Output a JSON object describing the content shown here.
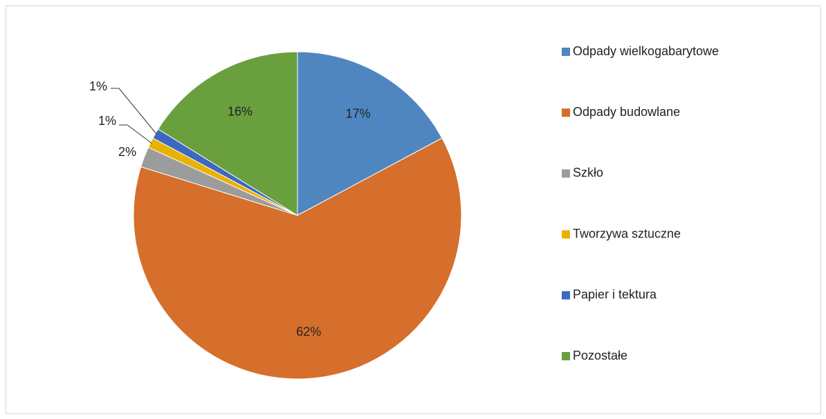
{
  "chart_data": {
    "type": "pie",
    "categories": [
      "Odpady wielkogabarytowe",
      "Odpady budowlane",
      "Szkło",
      "Tworzywa sztuczne",
      "Papier i tektura",
      "Pozostałe"
    ],
    "values": [
      17,
      62,
      2,
      1,
      1,
      16
    ],
    "value_labels": [
      "17%",
      "62%",
      "2%",
      "1%",
      "1%",
      "16%"
    ],
    "colors": [
      "#4f86c0",
      "#d56f2b",
      "#9c9c9c",
      "#eab103",
      "#3c68c0",
      "#6a9f3e"
    ],
    "legend": "right"
  }
}
